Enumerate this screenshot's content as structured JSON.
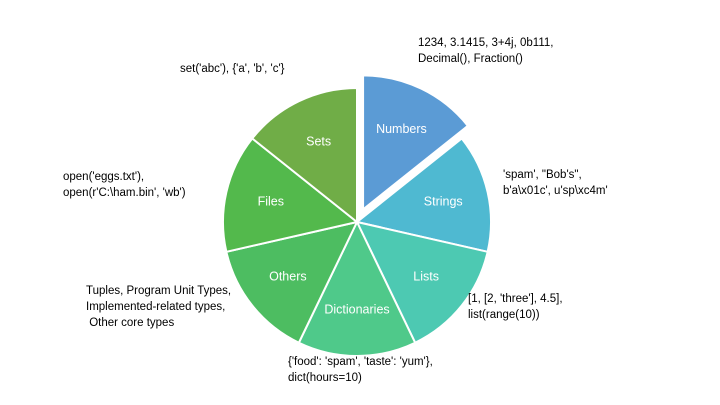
{
  "chart_data": {
    "type": "pie",
    "title": "",
    "exploded": "Numbers",
    "slices": [
      {
        "label": "Numbers",
        "value": 1,
        "color": "#5B9BD5",
        "annotation": [
          "1234, 3.1415, 3+4j, 0b111,",
          "Decimal(), Fraction()"
        ]
      },
      {
        "label": "Strings",
        "value": 1,
        "color": "#4FB9D1",
        "annotation": [
          "'spam', \"Bob's\",",
          "b'a\\x01c', u'sp\\xc4m'"
        ]
      },
      {
        "label": "Lists",
        "value": 1,
        "color": "#4DC9B2",
        "annotation": [
          "[1, [2, 'three'], 4.5],",
          "list(range(10))"
        ]
      },
      {
        "label": "Dictionaries",
        "value": 1,
        "color": "#4FC98A",
        "annotation": [
          "{'food': 'spam', 'taste': 'yum'},",
          "dict(hours=10)"
        ]
      },
      {
        "label": "Others",
        "value": 1,
        "color": "#4DBD61",
        "annotation": [
          "Tuples, Program Unit Types,",
          "Implemented-related types,",
          " Other core types"
        ]
      },
      {
        "label": "Files",
        "value": 1,
        "color": "#53B94C",
        "annotation": [
          "open('eggs.txt'),",
          "open(r'C:\\ham.bin', 'wb')"
        ]
      },
      {
        "label": "Sets",
        "value": 1,
        "color": "#70AD47",
        "annotation": [
          "set('abc'), {'a', 'b', 'c'}"
        ]
      }
    ]
  }
}
